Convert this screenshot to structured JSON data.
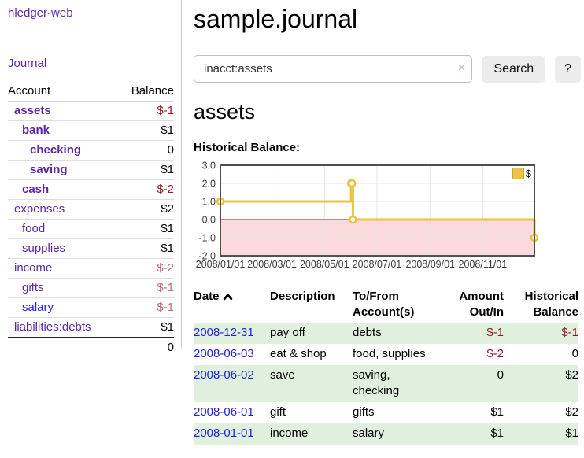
{
  "app": {
    "brand": "hledger-web",
    "nav_journal": "Journal"
  },
  "sidebar": {
    "header": {
      "account": "Account",
      "balance": "Balance"
    },
    "rows": [
      {
        "name": "assets",
        "balance": "$-1"
      },
      {
        "name": "bank",
        "balance": "$1"
      },
      {
        "name": "checking",
        "balance": "0"
      },
      {
        "name": "saving",
        "balance": "$1"
      },
      {
        "name": "cash",
        "balance": "$-2"
      },
      {
        "name": "expenses",
        "balance": "$2"
      },
      {
        "name": "food",
        "balance": "$1"
      },
      {
        "name": "supplies",
        "balance": "$1"
      },
      {
        "name": "income",
        "balance": "$-2"
      },
      {
        "name": "gifts",
        "balance": "$-1"
      },
      {
        "name": "salary",
        "balance": "$-1"
      },
      {
        "name": "liabilities:debts",
        "balance": "$1"
      }
    ],
    "total": "0"
  },
  "main": {
    "title": "sample.journal",
    "search": {
      "value": "inacct:assets",
      "clear": "×",
      "search_button": "Search",
      "help_button": "?"
    },
    "account_title": "assets",
    "chart_heading": "Historical Balance:"
  },
  "chart_data": {
    "type": "line",
    "step": true,
    "title": "Historical Balance",
    "series": [
      {
        "name": "$",
        "color": "#edc240",
        "points": [
          [
            "2008-01-01",
            1
          ],
          [
            "2008-06-01",
            2
          ],
          [
            "2008-06-02",
            2
          ],
          [
            "2008-06-03",
            0
          ],
          [
            "2008-12-31",
            -1
          ]
        ]
      }
    ],
    "xlim": [
      "2008-01-01",
      "2008-12-31"
    ],
    "ylim": [
      -2,
      3
    ],
    "x_ticks": [
      {
        "date": "2008-01-01",
        "label": "2008/01/01"
      },
      {
        "date": "2008-03-01",
        "label": "2008/03/01"
      },
      {
        "date": "2008-05-01",
        "label": "2008/05/01"
      },
      {
        "date": "2008-07-01",
        "label": "2008/07/01"
      },
      {
        "date": "2008-09-01",
        "label": "2008/09/01"
      },
      {
        "date": "2008-11-01",
        "label": "2008/11/01"
      }
    ],
    "y_ticks": [
      3,
      2,
      1,
      0,
      -1,
      -2
    ],
    "grid": true,
    "legend_position": "top-right",
    "colors": {
      "negative_region": "#fadadd",
      "zero_line": "#7d1c1c",
      "grid": "#e4e4e4",
      "border": "#4f4f4f",
      "tick_text": "#3c3c3c"
    }
  },
  "register": {
    "header": {
      "date": "Date",
      "description": "Description",
      "accounts_line1": "To/From",
      "accounts_line2": "Account(s)",
      "amount_line1": "Amount",
      "amount_line2": "Out/In",
      "balance_line1": "Historical",
      "balance_line2": "Balance"
    },
    "rows": [
      {
        "date": "2008-12-31",
        "description": "pay off",
        "accounts": "debts",
        "amount": "$-1",
        "balance": "$-1"
      },
      {
        "date": "2008-06-03",
        "description": "eat & shop",
        "accounts": "food, supplies",
        "amount": "$-2",
        "balance": "0"
      },
      {
        "date": "2008-06-02",
        "description": "save",
        "accounts": "saving, checking",
        "amount": "0",
        "balance": "$2"
      },
      {
        "date": "2008-06-01",
        "description": "gift",
        "accounts": "gifts",
        "amount": "$1",
        "balance": "$2"
      },
      {
        "date": "2008-01-01",
        "description": "income",
        "accounts": "salary",
        "amount": "$1",
        "balance": "$1"
      }
    ]
  }
}
